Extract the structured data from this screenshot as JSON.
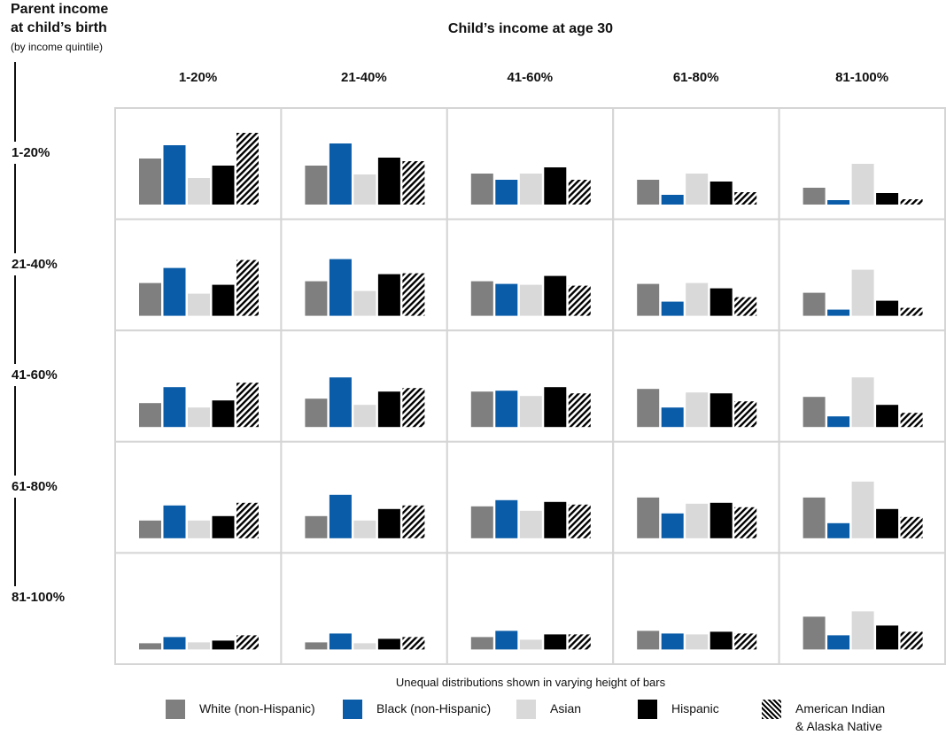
{
  "y_axis": {
    "title_line1": "Parent income",
    "title_line2": "at child’s birth",
    "subtitle": "(by income quintile)"
  },
  "chart_data": {
    "type": "bar",
    "title": "Child’s income at age 30",
    "note": "Unequal distributions shown in varying height of bars",
    "columns": [
      "1-20%",
      "21-40%",
      "41-60%",
      "61-80%",
      "81-100%"
    ],
    "rows": [
      "1-20%",
      "21-40%",
      "41-60%",
      "61-80%",
      "81-100%"
    ],
    "series": [
      {
        "name": "White (non-Hispanic)",
        "color": "#7f7f7f",
        "pattern": "solid"
      },
      {
        "name": "Black (non-Hispanic)",
        "color": "#0a5ca8",
        "pattern": "solid"
      },
      {
        "name": "Asian",
        "color": "#d9d9d9",
        "pattern": "solid"
      },
      {
        "name": "Hispanic",
        "color": "#000000",
        "pattern": "solid"
      },
      {
        "name": "American Indian\n& Alaska Native",
        "color": "#000000",
        "pattern": "hatched"
      }
    ],
    "values": [
      [
        [
          52,
          67,
          30,
          44,
          81
        ],
        [
          44,
          69,
          34,
          53,
          49
        ],
        [
          35,
          28,
          35,
          42,
          28
        ],
        [
          28,
          11,
          35,
          26,
          14
        ],
        [
          19,
          5,
          46,
          13,
          6
        ]
      ],
      [
        [
          37,
          54,
          25,
          35,
          63
        ],
        [
          39,
          64,
          28,
          47,
          48
        ],
        [
          39,
          36,
          35,
          45,
          34
        ],
        [
          36,
          16,
          37,
          31,
          21
        ],
        [
          26,
          7,
          52,
          17,
          9
        ]
      ],
      [
        [
          27,
          45,
          22,
          30,
          50
        ],
        [
          32,
          56,
          25,
          40,
          44
        ],
        [
          40,
          41,
          35,
          45,
          38
        ],
        [
          43,
          22,
          39,
          38,
          29
        ],
        [
          34,
          12,
          56,
          25,
          16
        ]
      ],
      [
        [
          20,
          37,
          20,
          25,
          40
        ],
        [
          25,
          49,
          20,
          33,
          37
        ],
        [
          36,
          43,
          31,
          41,
          38
        ],
        [
          46,
          28,
          39,
          40,
          35
        ],
        [
          46,
          17,
          64,
          33,
          24
        ]
      ],
      [
        [
          7,
          14,
          8,
          10,
          16
        ],
        [
          8,
          18,
          7,
          12,
          14
        ],
        [
          14,
          21,
          11,
          17,
          17
        ],
        [
          21,
          18,
          17,
          20,
          18
        ],
        [
          37,
          16,
          43,
          27,
          20
        ]
      ]
    ]
  }
}
